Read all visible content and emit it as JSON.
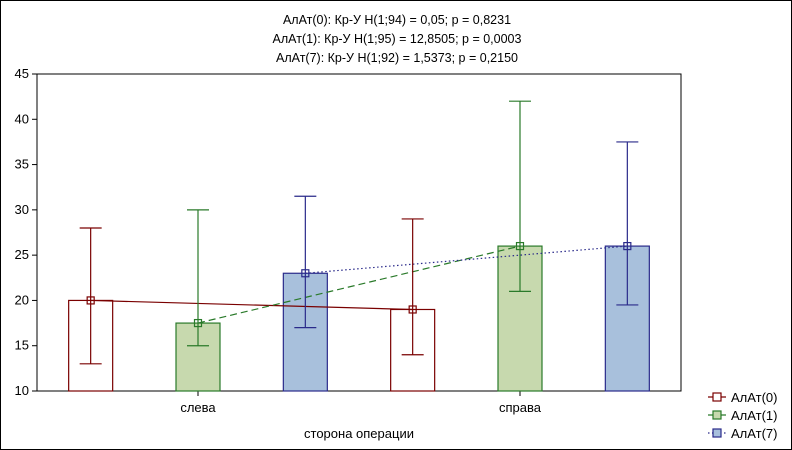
{
  "chart_data": {
    "type": "bar",
    "title_lines": [
      "АлАт(0):  Кр-У H(1;94) = 0,05; p = 0,8231",
      "АлАт(1):  Кр-У H(1;95) = 12,8505; p = 0,0003",
      "АлАт(7):  Кр-У H(1;92) = 1,5373; p = 0,2150"
    ],
    "xlabel": "сторона операции",
    "ylabel": "",
    "categories": [
      "слева",
      "справа"
    ],
    "ylim": [
      10,
      45
    ],
    "yticks": [
      10,
      15,
      20,
      25,
      30,
      35,
      40,
      45
    ],
    "grid": false,
    "legend_position": "bottom-right",
    "series": [
      {
        "name": "АлАт(0)",
        "values": [
          20,
          19
        ],
        "whisker_low": [
          13,
          14
        ],
        "whisker_high": [
          28,
          29
        ],
        "fill": "#ffffff",
        "edge": "#7a0000",
        "line_style": "solid"
      },
      {
        "name": "АлАт(1)",
        "values": [
          17.5,
          26
        ],
        "whisker_low": [
          15,
          21
        ],
        "whisker_high": [
          30,
          42
        ],
        "fill": "#c7d9ae",
        "edge": "#2a7a2a",
        "line_style": "dashed"
      },
      {
        "name": "АлАт(7)",
        "values": [
          23,
          26
        ],
        "whisker_low": [
          17,
          19.5
        ],
        "whisker_high": [
          31.5,
          37.5
        ],
        "fill": "#a8c0dc",
        "edge": "#2a2a8a",
        "line_style": "dotted"
      }
    ]
  }
}
